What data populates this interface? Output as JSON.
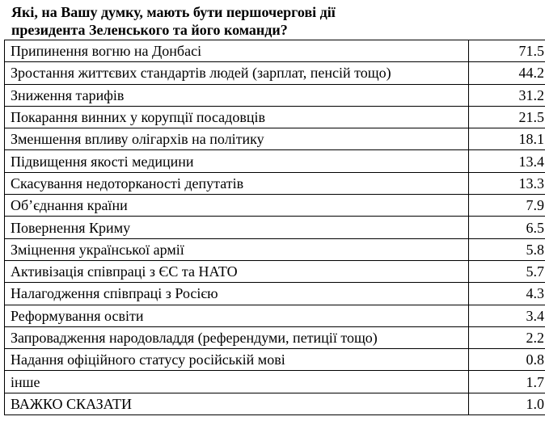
{
  "chart_data": {
    "type": "table",
    "title_lines": [
      "Які, на Вашу думку, мають бути першочергові дії",
      "президента Зеленського та його команди?"
    ],
    "rows": [
      {
        "label": "Припинення вогню на Донбасі",
        "value": "71.5"
      },
      {
        "label": "Зростання життєвих стандартів людей (зарплат, пенсій тощо)",
        "value": "44.2"
      },
      {
        "label": "Зниження тарифів",
        "value": "31.2"
      },
      {
        "label": "Покарання винних у корупції посадовців",
        "value": "21.5"
      },
      {
        "label": "Зменшення впливу олігархів на політику",
        "value": "18.1"
      },
      {
        "label": "Підвищення якості медицини",
        "value": "13.4"
      },
      {
        "label": "Скасування недоторканості депутатів",
        "value": "13.3"
      },
      {
        "label": "Об’єднання країни",
        "value": "7.9"
      },
      {
        "label": "Повернення Криму",
        "value": "6.5"
      },
      {
        "label": "Зміцнення української армії",
        "value": "5.8"
      },
      {
        "label": "Активізація співпраці з ЄС та НАТО",
        "value": "5.7"
      },
      {
        "label": "Налагодження співпраці з Росією",
        "value": "4.3"
      },
      {
        "label": "Реформування освіти",
        "value": "3.4"
      },
      {
        "label": "Запровадження народовладдя (референдуми, петиції тощо)",
        "value": "2.2"
      },
      {
        "label": "Надання офіційного статусу російській мові",
        "value": "0.8"
      },
      {
        "label": "інше",
        "value": "1.7"
      },
      {
        "label": "ВАЖКО СКАЗАТИ",
        "value": "1.0"
      }
    ]
  }
}
